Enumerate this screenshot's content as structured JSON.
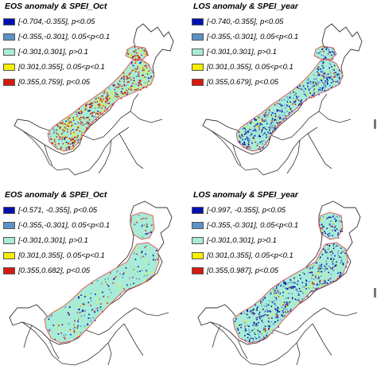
{
  "colors": {
    "strong_negative": "#0010b0",
    "moderate_negative": "#5b93c8",
    "not_significant": "#a8ecd8",
    "moderate_positive": "#f6f000",
    "strong_positive": "#d41b12",
    "region_outline": "#e05050",
    "province_boundary": "#333333"
  },
  "panels": [
    {
      "title": "EOS anomaly & SPEI_Oct",
      "legend": [
        {
          "label": "[-0.704,-0.355], p<0.05",
          "color_key": "strong_negative"
        },
        {
          "label": "[-0.355,-0.301], 0.05<p<0.1",
          "color_key": "moderate_negative"
        },
        {
          "label": "[-0.301,0.301], p>0.1",
          "color_key": "not_significant"
        },
        {
          "label": "[0.301,0.355], 0.05<p<0.1",
          "color_key": "moderate_positive"
        },
        {
          "label": "[0.355,0.759], p<0.05",
          "color_key": "strong_positive"
        }
      ]
    },
    {
      "title": "LOS anomaly & SPEI_year",
      "legend": [
        {
          "label": "[-0.740,-0.355], p<0.05",
          "color_key": "strong_negative"
        },
        {
          "label": "[-0.355,-0.301], 0.05<p<0.1",
          "color_key": "moderate_negative"
        },
        {
          "label": "[-0.301,0.301], p>0.1",
          "color_key": "not_significant"
        },
        {
          "label": "[0.301,0.355], 0.05<p<0.1",
          "color_key": "moderate_positive"
        },
        {
          "label": "[0.355,0.679], p<0.05",
          "color_key": "strong_positive"
        }
      ]
    },
    {
      "title": "EOS anomaly & SPEI_Oct",
      "legend": [
        {
          "label": "[-0.571, -0.355], p<0.05",
          "color_key": "strong_negative"
        },
        {
          "label": "[-0.355,-0.301], 0.05<p<0.1",
          "color_key": "moderate_negative"
        },
        {
          "label": "[-0.301,0.301], p>0.1",
          "color_key": "not_significant"
        },
        {
          "label": "[0.301,0.355], 0.05<p<0.1",
          "color_key": "moderate_positive"
        },
        {
          "label": "[0.355,0.682], p<0.05",
          "color_key": "strong_positive"
        }
      ]
    },
    {
      "title": "LOS anomaly & SPEI_year",
      "legend": [
        {
          "label": "[-0.997, -0.355], p<0.05",
          "color_key": "strong_negative"
        },
        {
          "label": "[-0.355,-0.301], 0.05<p<0.1",
          "color_key": "moderate_negative"
        },
        {
          "label": "[-0.301,0.301], p>0.1",
          "color_key": "not_significant"
        },
        {
          "label": "[0.301,0.355], 0.05<p<0.1",
          "color_key": "moderate_positive"
        },
        {
          "label": "[0.355,0.987], p<0.05",
          "color_key": "strong_positive"
        }
      ]
    }
  ]
}
